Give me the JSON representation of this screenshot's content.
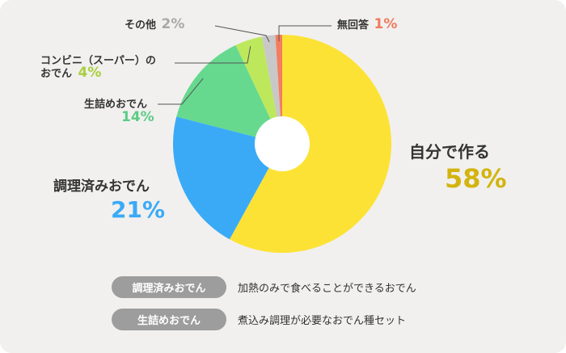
{
  "chart_data": {
    "type": "pie",
    "title": "",
    "donut_hole": true,
    "slices": [
      {
        "label": "自分で作る",
        "value": 58,
        "pct_label": "58%",
        "color": "#fde236",
        "pct_color": "#d3b40f"
      },
      {
        "label": "調理済みおでん",
        "value": 21,
        "pct_label": "21%",
        "color": "#3aaaf7",
        "pct_color": "#3aaaf7"
      },
      {
        "label": "生詰めおでん",
        "value": 14,
        "pct_label": "14%",
        "color": "#66d98e",
        "pct_color": "#5ccc84"
      },
      {
        "label_line1": "コンビニ（スーパー）の",
        "label_line2": "おでん",
        "value": 4,
        "pct_label": "4%",
        "color": "#bde85c",
        "pct_color": "#a8cf3c"
      },
      {
        "label": "その他",
        "value": 2,
        "pct_label": "2%",
        "color": "#c8c8c8",
        "pct_color": "#a8a8a8"
      },
      {
        "label": "無回答",
        "value": 1,
        "pct_label": "1%",
        "color": "#f47d5f",
        "pct_color": "#f07a5e"
      }
    ]
  },
  "notes": [
    {
      "tag": "調理済みおでん",
      "text": "加熱のみで食べることができるおでん"
    },
    {
      "tag": "生詰めおでん",
      "text": "煮込み調理が必要なおでん種セット"
    }
  ]
}
